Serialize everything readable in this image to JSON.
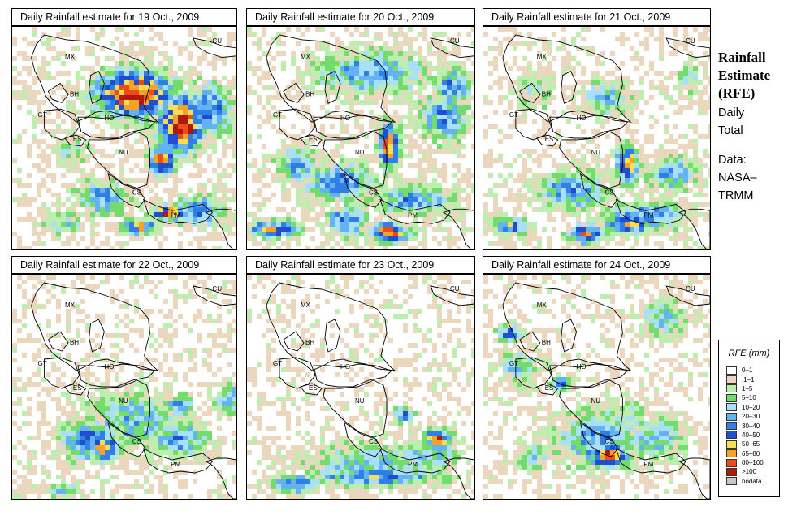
{
  "panels": [
    {
      "title": "Daily Rainfall estimate for  19 Oct., 2009",
      "day": 19
    },
    {
      "title": "Daily Rainfall estimate for  20 Oct., 2009",
      "day": 20
    },
    {
      "title": "Daily Rainfall estimate for  21 Oct., 2009",
      "day": 21
    },
    {
      "title": "Daily Rainfall estimate for  22 Oct., 2009",
      "day": 22
    },
    {
      "title": "Daily Rainfall estimate for  23 Oct., 2009",
      "day": 23
    },
    {
      "title": "Daily Rainfall estimate for  24 Oct., 2009",
      "day": 24
    }
  ],
  "country_labels": [
    "MX",
    "CU",
    "BH",
    "GT",
    "HO",
    "ES",
    "NU",
    "CS",
    "PM"
  ],
  "sidebar": {
    "title_lines": [
      "Rainfall",
      "Estimate",
      "(RFE)"
    ],
    "daily_lines": [
      "Daily",
      "Total"
    ],
    "data_lines": [
      "Data:",
      "NASA–",
      "TRMM"
    ]
  },
  "legend": {
    "title": "RFE (mm)",
    "items": [
      {
        "label": "0–1",
        "color": "#ffffff"
      },
      {
        "label": ".1–1",
        "color": "#ead7bd"
      },
      {
        "label": "1–5",
        "color": "#bdeeb0"
      },
      {
        "label": "5–10",
        "color": "#72dd6d"
      },
      {
        "label": "10–20",
        "color": "#a9dff7"
      },
      {
        "label": "20–30",
        "color": "#63b3f2"
      },
      {
        "label": "30–40",
        "color": "#2f7fe6"
      },
      {
        "label": "40–50",
        "color": "#1e4fd0"
      },
      {
        "label": "50–65",
        "color": "#f8dd55"
      },
      {
        "label": "65–80",
        "color": "#f5a327"
      },
      {
        "label": "80–100",
        "color": "#ec4b1a"
      },
      {
        "label": ">100",
        "color": "#b0190e"
      },
      {
        "label": "nodata",
        "color": "#c8c8c8"
      }
    ]
  }
}
